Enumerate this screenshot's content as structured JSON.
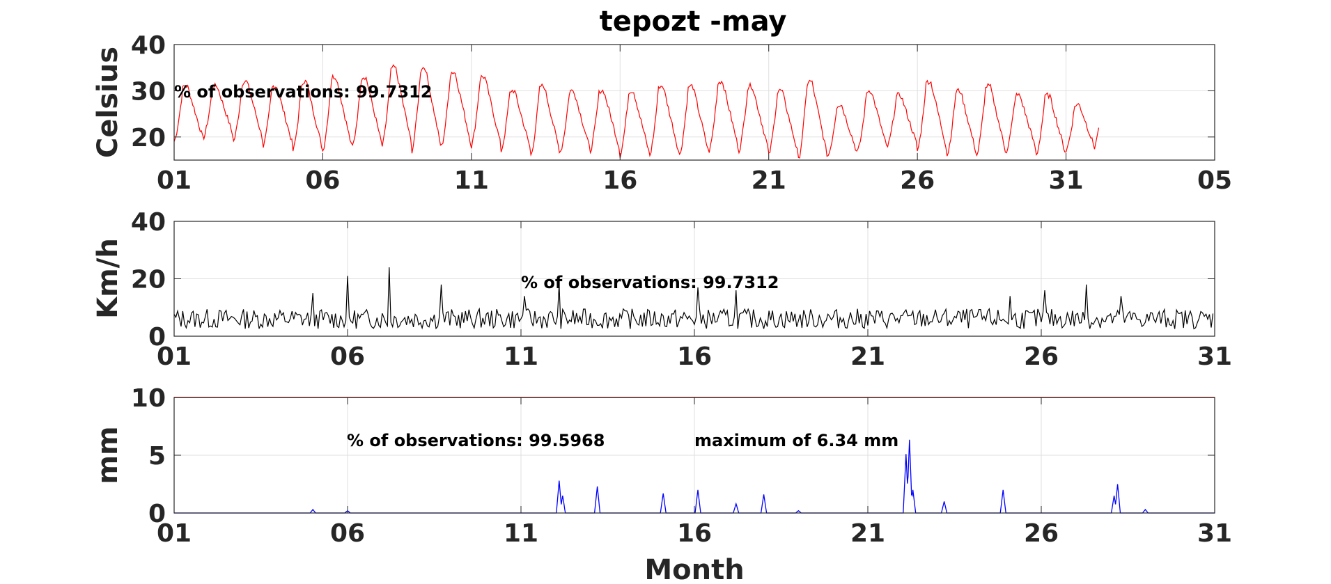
{
  "figure": {
    "title": "tepozt -may",
    "xlabel": "Month"
  },
  "chart_data": [
    {
      "type": "line",
      "ylabel": "Celsius",
      "ylim": [
        15,
        40
      ],
      "yticks": [
        "20",
        "30",
        "40"
      ],
      "xlim": [
        1,
        36
      ],
      "xticks": [
        "01",
        "06",
        "11",
        "16",
        "21",
        "26",
        "31",
        "05"
      ],
      "grid": true,
      "series": [
        {
          "color": "#ff0000",
          "daily_min": [
            19,
            20,
            19,
            18,
            17,
            17,
            18,
            18,
            17,
            18,
            18,
            17,
            16,
            17,
            17,
            16,
            16,
            16,
            17,
            17,
            16,
            15,
            16,
            17,
            18,
            17,
            16,
            16,
            17,
            16,
            17
          ],
          "daily_max": [
            31,
            31,
            32,
            31,
            32,
            33,
            33,
            35,
            35,
            34,
            33,
            30,
            31,
            30,
            30,
            30,
            31,
            31,
            32,
            31,
            30,
            32,
            27,
            30,
            29,
            32,
            30,
            31,
            29,
            29,
            27
          ],
          "samples_per_day": 24,
          "end_x": 32.1,
          "end_value": 22
        }
      ],
      "annotation": "% of observations: 99.7312"
    },
    {
      "type": "line",
      "ylabel": "Km/h",
      "ylim": [
        0,
        40
      ],
      "yticks": [
        "0",
        "20",
        "40"
      ],
      "xlim": [
        1,
        31
      ],
      "xticks": [
        "01",
        "06",
        "11",
        "16",
        "21",
        "26",
        "31"
      ],
      "grid": true,
      "series": [
        {
          "color": "#000000",
          "base": 5,
          "peaks": [
            [
              5,
              15
            ],
            [
              6,
              21
            ],
            [
              7.2,
              24
            ],
            [
              8.7,
              18
            ],
            [
              11.1,
              14
            ],
            [
              12.1,
              18
            ],
            [
              16.1,
              17
            ],
            [
              17.2,
              16
            ],
            [
              25.1,
              14
            ],
            [
              26.1,
              16
            ],
            [
              27.3,
              18
            ],
            [
              28.3,
              14
            ]
          ]
        }
      ],
      "annotation": "% of observations: 99.7312"
    },
    {
      "type": "line",
      "ylabel": "mm",
      "ylim": [
        0,
        10
      ],
      "yticks": [
        "0",
        "5",
        "10"
      ],
      "xlim": [
        1,
        31
      ],
      "xticks": [
        "01",
        "06",
        "11",
        "16",
        "21",
        "26",
        "31"
      ],
      "grid": true,
      "reference_line": {
        "value": 10,
        "color": "#ff0000"
      },
      "series": [
        {
          "color": "#0000ff",
          "peaks": [
            [
              5,
              0.3
            ],
            [
              6,
              0.2
            ],
            [
              12.1,
              2.8
            ],
            [
              12.2,
              1.5
            ],
            [
              13.2,
              2.3
            ],
            [
              15.1,
              1.7
            ],
            [
              16.1,
              2.0
            ],
            [
              17.2,
              0.8
            ],
            [
              18,
              1.6
            ],
            [
              19,
              0.2
            ],
            [
              22.1,
              5.1
            ],
            [
              22.2,
              6.34
            ],
            [
              22.3,
              2.0
            ],
            [
              23.2,
              1.0
            ],
            [
              24.9,
              2.0
            ],
            [
              28.1,
              1.5
            ],
            [
              28.2,
              2.5
            ],
            [
              29,
              0.3
            ]
          ]
        }
      ],
      "annotations": [
        "% of observations: 99.5968",
        "maximum of 6.34 mm"
      ]
    }
  ]
}
